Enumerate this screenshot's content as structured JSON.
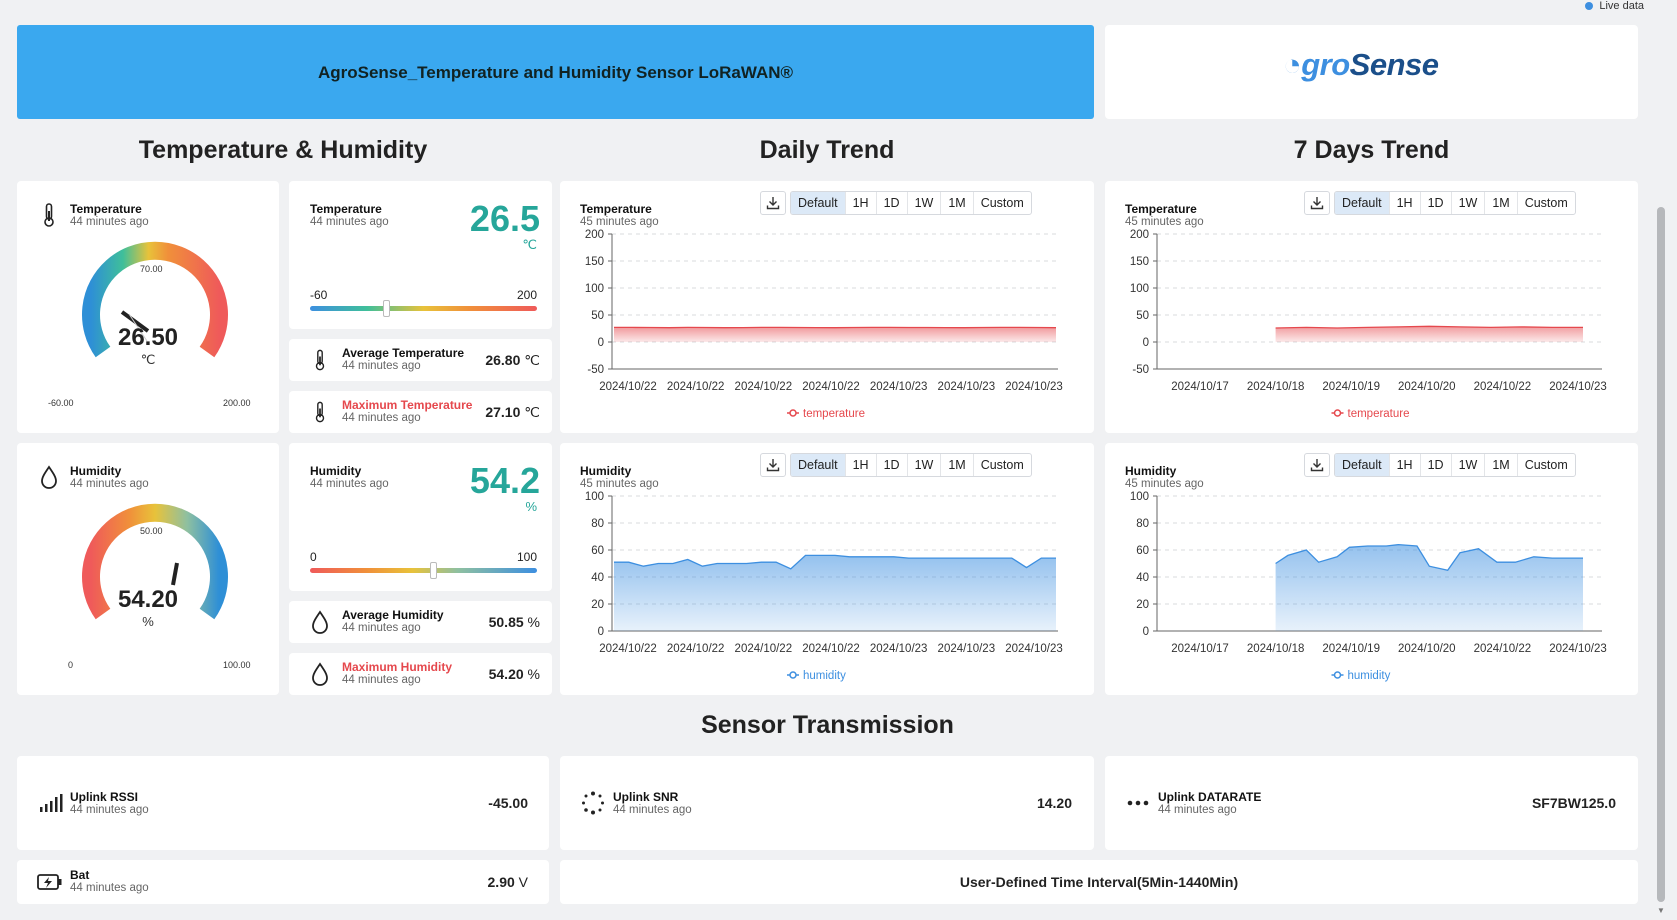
{
  "live": "Live data",
  "header": {
    "title": "AgroSense_Temperature and Humidity Sensor LoRaWAN®",
    "logo_a": "gro",
    "logo_b": "Sense"
  },
  "sections": {
    "th": "Temperature & Humidity",
    "daily": "Daily Trend",
    "weekly": "7 Days Trend",
    "tx": "Sensor Transmission"
  },
  "time_ago_44": "44 minutes ago",
  "time_ago_45": "45 minutes ago",
  "gauge_temp": {
    "title": "Temperature",
    "value": "26.50",
    "unit": "℃",
    "min": "-60.00",
    "max": "200.00",
    "mid": "70.00"
  },
  "gauge_hum": {
    "title": "Humidity",
    "value": "54.20",
    "unit": "%",
    "min": "0",
    "max": "100.00",
    "mid": "50.00"
  },
  "temp_card": {
    "title": "Temperature",
    "value": "26.5",
    "unit": "℃",
    "min": "-60",
    "max": "200"
  },
  "hum_card": {
    "title": "Humidity",
    "value": "54.2",
    "unit": "%",
    "min": "0",
    "max": "100"
  },
  "avg_temp": {
    "title": "Average Temperature",
    "value": "26.80",
    "unit": "℃"
  },
  "max_temp": {
    "title": "Maximum Temperature",
    "value": "27.10",
    "unit": "℃"
  },
  "avg_hum": {
    "title": "Average Humidity",
    "value": "50.85",
    "unit": "%"
  },
  "max_hum": {
    "title": "Maximum Humidity",
    "value": "54.20",
    "unit": "%"
  },
  "range_buttons": [
    "Default",
    "1H",
    "1D",
    "1W",
    "1M",
    "Custom"
  ],
  "chart_titles": {
    "temperature": "Temperature",
    "humidity": "Humidity"
  },
  "chart_data": [
    {
      "id": "daily_temp",
      "type": "area",
      "title": "Temperature",
      "legend": "temperature",
      "color": "#e5484d",
      "ylim": [
        -50,
        200
      ],
      "yticks": [
        200,
        150,
        100,
        50,
        0,
        -50
      ],
      "xticks": [
        "2024/10/22",
        "2024/10/22",
        "2024/10/22",
        "2024/10/22",
        "2024/10/23",
        "2024/10/23",
        "2024/10/23"
      ],
      "x": [
        0,
        1,
        2,
        3,
        4,
        5,
        6,
        7,
        8,
        9,
        10,
        11,
        12,
        13,
        14,
        15,
        16,
        17,
        18,
        19,
        20,
        21,
        22,
        23,
        24
      ],
      "values": [
        27,
        27,
        26.8,
        26.5,
        27,
        26.8,
        26.5,
        26.6,
        27,
        27,
        26.8,
        26.6,
        26.5,
        26.8,
        27,
        27,
        26.9,
        26.8,
        26.6,
        26.5,
        26.8,
        27,
        27.1,
        26.8,
        26.5
      ]
    },
    {
      "id": "weekly_temp",
      "type": "area",
      "title": "Temperature",
      "legend": "temperature",
      "color": "#e5484d",
      "ylim": [
        -50,
        200
      ],
      "yticks": [
        200,
        150,
        100,
        50,
        0,
        -50
      ],
      "xticks": [
        "2024/10/17",
        "2024/10/18",
        "2024/10/19",
        "2024/10/20",
        "2024/10/22",
        "2024/10/23"
      ],
      "x": [
        1,
        1.5,
        2,
        2.5,
        3,
        3.5,
        4,
        4.5,
        5,
        5.5,
        6
      ],
      "values": [
        26,
        27,
        26,
        27,
        28,
        29,
        28,
        27,
        28,
        27,
        27
      ]
    },
    {
      "id": "daily_hum",
      "type": "area",
      "title": "Humidity",
      "legend": "humidity",
      "color": "#3d8fe0",
      "ylim": [
        0,
        100
      ],
      "yticks": [
        100,
        80,
        60,
        40,
        20,
        0
      ],
      "xticks": [
        "2024/10/22",
        "2024/10/22",
        "2024/10/22",
        "2024/10/22",
        "2024/10/23",
        "2024/10/23",
        "2024/10/23"
      ],
      "x": [
        0,
        1,
        2,
        3,
        4,
        5,
        6,
        7,
        8,
        9,
        10,
        11,
        12,
        13,
        14,
        15,
        16,
        17,
        18,
        19,
        20,
        21,
        22,
        23,
        24,
        25,
        26,
        27,
        28,
        29,
        30
      ],
      "values": [
        51,
        51,
        48,
        50,
        50,
        53,
        48,
        50,
        50,
        50,
        51,
        51,
        46,
        56,
        56,
        56,
        55,
        55,
        55,
        55,
        54,
        54,
        54,
        54,
        54,
        54,
        54,
        54,
        47,
        54,
        54
      ]
    },
    {
      "id": "weekly_hum",
      "type": "area",
      "title": "Humidity",
      "legend": "humidity",
      "color": "#3d8fe0",
      "ylim": [
        0,
        100
      ],
      "yticks": [
        100,
        80,
        60,
        40,
        20,
        0
      ],
      "xticks": [
        "2024/10/17",
        "2024/10/18",
        "2024/10/19",
        "2024/10/20",
        "2024/10/22",
        "2024/10/23"
      ],
      "x": [
        1,
        1.2,
        1.5,
        1.7,
        2,
        2.2,
        2.5,
        2.8,
        3,
        3.3,
        3.5,
        3.8,
        4,
        4.3,
        4.6,
        4.9,
        5.2,
        5.5,
        5.8,
        6
      ],
      "values": [
        50,
        56,
        60,
        51,
        55,
        62,
        63,
        63,
        64,
        63,
        48,
        45,
        58,
        61,
        51,
        51,
        55,
        54,
        54,
        54
      ]
    }
  ],
  "tx": {
    "rssi": {
      "title": "Uplink RSSI",
      "value": "-45.00"
    },
    "snr": {
      "title": "Uplink SNR",
      "value": "14.20"
    },
    "dr": {
      "title": "Uplink DATARATE",
      "value": "SF7BW125.0"
    },
    "bat": {
      "title": "Bat",
      "value": "2.90",
      "unit": "V"
    },
    "interval": "User-Defined Time Interval(5Min-1440Min)"
  },
  "colors": {
    "header_bg": "#3aa8ef",
    "accent_teal": "#26a69a",
    "red": "#e5484d",
    "blue": "#3d8fe0"
  }
}
